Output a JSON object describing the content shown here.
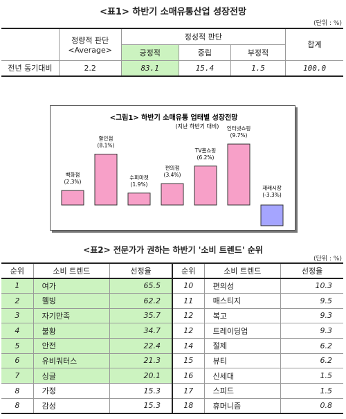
{
  "table1": {
    "title": "<표1> 하반기 소매유통산업 성장전망",
    "unit": "(단위 : %)",
    "headers": {
      "quant_line1": "정량적 판단",
      "quant_line2": "<Average>",
      "qual": "정성적 판단",
      "positive": "긍정적",
      "neutral": "중립",
      "negative": "부정적",
      "total": "합계"
    },
    "row": {
      "label": "전년 동기대비",
      "average": "2.2",
      "positive": "83.1",
      "neutral": "15.4",
      "negative": "1.5",
      "total": "100.0"
    }
  },
  "figure1": {
    "title": "<그림1> 하반기 소매유통 업태별 성장전망",
    "subtitle": "(지난 하반기 대비)",
    "chart_data": {
      "type": "bar",
      "categories": [
        "백화점",
        "할인점",
        "수퍼마켓",
        "편의점",
        "TV홈쇼핑",
        "인터넷쇼핑",
        "재래시장"
      ],
      "values": [
        2.3,
        8.1,
        1.9,
        3.4,
        6.2,
        9.7,
        -3.3
      ],
      "value_labels": [
        "(2.3%)",
        "(8.1%)",
        "(1.9%)",
        "(3.4%)",
        "(6.2%)",
        "(9.7%)",
        "(-3.3%)"
      ],
      "ylim": [
        -3.3,
        9.7
      ],
      "colors": {
        "positive": "#f7a0c8",
        "negative": "#a5a5ff",
        "border": "#333333"
      }
    }
  },
  "table2": {
    "title": "<표2> 전문가가 권하는 하반기 '소비 트렌드' 순위",
    "unit": "(단위 : %)",
    "headers": {
      "rank": "순위",
      "trend": "소비 트렌드",
      "rate": "선정율"
    },
    "left": [
      {
        "rank": "1",
        "trend": "여가",
        "rate": "65.5"
      },
      {
        "rank": "2",
        "trend": "웰빙",
        "rate": "62.2"
      },
      {
        "rank": "3",
        "trend": "자기만족",
        "rate": "35.7"
      },
      {
        "rank": "4",
        "trend": "불황",
        "rate": "34.7"
      },
      {
        "rank": "5",
        "trend": "안전",
        "rate": "22.4"
      },
      {
        "rank": "6",
        "trend": "유비쿼터스",
        "rate": "21.3"
      },
      {
        "rank": "7",
        "trend": "싱글",
        "rate": "20.1"
      },
      {
        "rank": "8",
        "trend": "가정",
        "rate": "15.3"
      },
      {
        "rank": "8",
        "trend": "감성",
        "rate": "15.3"
      }
    ],
    "right": [
      {
        "rank": "10",
        "trend": "편의성",
        "rate": "10.3"
      },
      {
        "rank": "11",
        "trend": "매스티지",
        "rate": "9.5"
      },
      {
        "rank": "12",
        "trend": "복고",
        "rate": "9.3"
      },
      {
        "rank": "12",
        "trend": "트레이딩업",
        "rate": "9.3"
      },
      {
        "rank": "14",
        "trend": "절제",
        "rate": "6.2"
      },
      {
        "rank": "15",
        "trend": "뷰티",
        "rate": "6.2"
      },
      {
        "rank": "16",
        "trend": "신세대",
        "rate": "1.5"
      },
      {
        "rank": "17",
        "trend": "스피드",
        "rate": "1.5"
      },
      {
        "rank": "18",
        "trend": "휴머니즘",
        "rate": "0.8"
      }
    ],
    "highlight_color": "#ccf3c0"
  }
}
